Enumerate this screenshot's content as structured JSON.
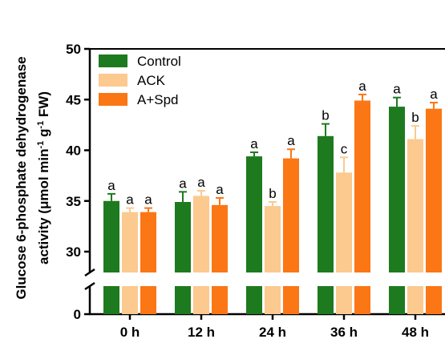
{
  "chart_data": {
    "type": "bar",
    "title": "",
    "xlabel": "",
    "ylabel": {
      "line1": "Glucose 6-phosphate dehydrogenase",
      "line2_prefix": "activity (μmol min",
      "sup1": "-1",
      "line2_mid": " g",
      "sup2": "-1",
      "line2_suffix": " FW)"
    },
    "categories": [
      "0 h",
      "12 h",
      "24 h",
      "36 h",
      "48 h"
    ],
    "series": [
      {
        "name": "Control",
        "color": "#1e7a1e",
        "values": [
          35.0,
          34.9,
          39.4,
          41.4,
          44.3
        ],
        "errors": [
          0.7,
          1.0,
          0.4,
          1.2,
          0.9
        ],
        "labels": [
          "a",
          "a",
          "a",
          "b",
          "a"
        ]
      },
      {
        "name": "ACK",
        "color": "#fcc98f",
        "values": [
          33.9,
          35.5,
          34.5,
          37.8,
          41.1
        ],
        "errors": [
          0.4,
          0.5,
          0.4,
          1.5,
          1.3
        ],
        "labels": [
          "a",
          "a",
          "b",
          "c",
          "b"
        ]
      },
      {
        "name": "A+Spd",
        "color": "#fb7614",
        "values": [
          33.9,
          34.6,
          39.2,
          44.9,
          44.1
        ],
        "errors": [
          0.4,
          0.7,
          0.9,
          0.6,
          0.6
        ],
        "labels": [
          "a",
          "a",
          "a",
          "a",
          "a"
        ]
      }
    ],
    "yaxis": {
      "upper_range": [
        30,
        50
      ],
      "upper_ticks": [
        "30",
        "35",
        "40",
        "45",
        "50"
      ],
      "lower_ticks": [
        "0"
      ],
      "broken": true
    },
    "legend_position": "top-left",
    "grid": false
  }
}
